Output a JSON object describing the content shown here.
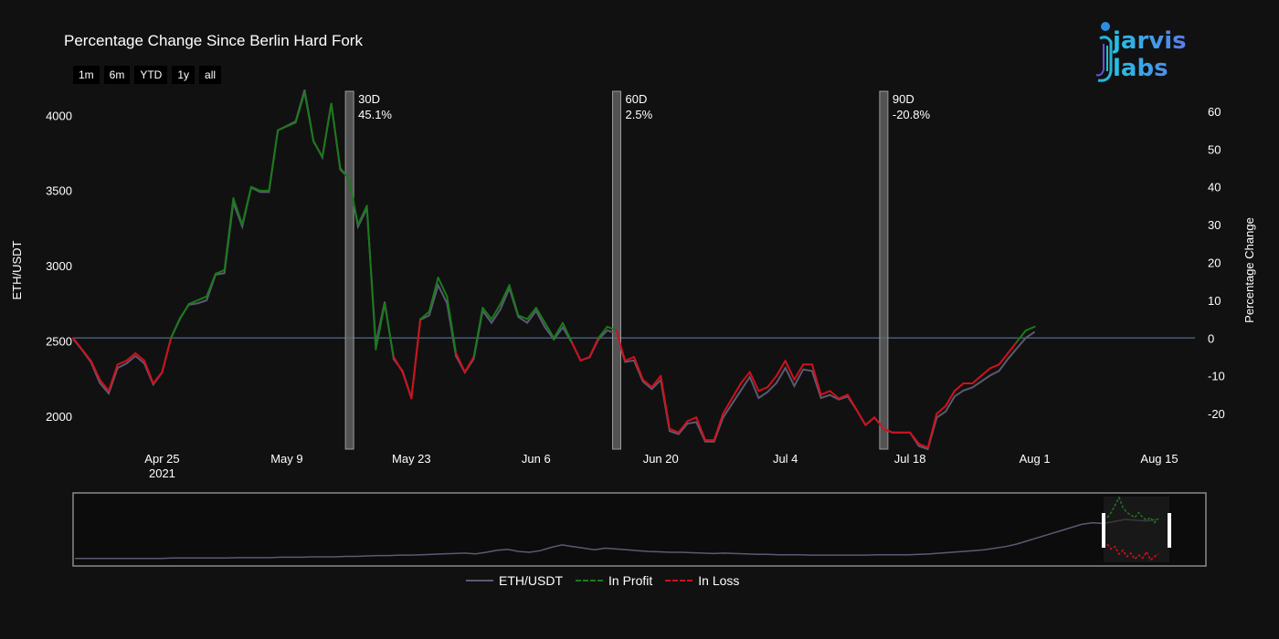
{
  "title": "Percentage Change Since Berlin Hard Fork",
  "range_buttons": [
    "1m",
    "6m",
    "YTD",
    "1y",
    "all"
  ],
  "logo": {
    "text": "jarvis labs"
  },
  "colors": {
    "background": "#111111",
    "eth": "#5b5a73",
    "profit": "#1a7a1a",
    "loss": "#d0111b",
    "marker": "#6a6a6a",
    "zero": "#4a5a75"
  },
  "chart_data": {
    "type": "line",
    "title": "Percentage Change Since Berlin Hard Fork",
    "x_start_date": "2021-04-15",
    "x_ticks": [
      {
        "day": 10,
        "label": "Apr 25",
        "sub": "2021"
      },
      {
        "day": 24,
        "label": "May 9",
        "sub": ""
      },
      {
        "day": 38,
        "label": "May 23",
        "sub": ""
      },
      {
        "day": 52,
        "label": "Jun 6",
        "sub": ""
      },
      {
        "day": 66,
        "label": "Jun 20",
        "sub": ""
      },
      {
        "day": 80,
        "label": "Jul 4",
        "sub": ""
      },
      {
        "day": 94,
        "label": "Jul 18",
        "sub": ""
      },
      {
        "day": 108,
        "label": "Aug 1",
        "sub": ""
      },
      {
        "day": 122,
        "label": "Aug 15",
        "sub": ""
      }
    ],
    "xlim": [
      0,
      126
    ],
    "y_left": {
      "label": "ETH/USDT",
      "lim": [
        1780,
        4160
      ],
      "ticks": [
        2000,
        2500,
        3000,
        3500,
        4000
      ]
    },
    "y_right": {
      "label": "Percentage Change",
      "lim": [
        -29.4,
        65.3
      ],
      "ticks": [
        60,
        50,
        40,
        30,
        20,
        10,
        0,
        -10,
        -20
      ]
    },
    "series": [
      {
        "name": "ETH/USDT",
        "axis": "left",
        "values": [
          2514,
          2440,
          2360,
          2220,
          2150,
          2320,
          2350,
          2400,
          2350,
          2210,
          2290,
          2520,
          2650,
          2740,
          2750,
          2770,
          2940,
          2950,
          3420,
          3260,
          3520,
          3490,
          3490,
          3900,
          3930,
          3960,
          4170,
          3830,
          3720,
          4080,
          3640,
          3580,
          3260,
          3380,
          2480,
          2760,
          2380,
          2300,
          2120,
          2640,
          2670,
          2870,
          2750,
          2400,
          2290,
          2380,
          2700,
          2620,
          2710,
          2850,
          2660,
          2620,
          2700,
          2590,
          2510,
          2590,
          2490,
          2370,
          2390,
          2510,
          2570,
          2550,
          2360,
          2370,
          2230,
          2180,
          2240,
          1900,
          1880,
          1950,
          1960,
          1830,
          1830,
          1990,
          2080,
          2170,
          2260,
          2120,
          2160,
          2220,
          2320,
          2200,
          2310,
          2300,
          2120,
          2140,
          2110,
          2130,
          2040,
          1940,
          1990,
          1920,
          1890,
          1890,
          1890,
          1800,
          1780,
          1990,
          2030,
          2130,
          2170,
          2190,
          2230,
          2270,
          2300,
          2380,
          2450,
          2520,
          2560
        ]
      },
      {
        "name": "In Profit",
        "axis": "right",
        "style": "dash",
        "values": [
          0,
          -3,
          -6,
          -11,
          -14,
          -7,
          -6,
          -4,
          -6,
          -12,
          -9,
          0,
          5,
          9,
          10,
          11,
          17,
          18,
          37,
          30,
          40,
          39,
          39,
          55,
          56,
          57,
          65,
          52,
          48,
          62,
          45,
          42,
          30,
          35,
          -3,
          9,
          -5,
          -9,
          -16,
          5,
          7,
          16,
          11,
          -4,
          -9,
          -5,
          8,
          5,
          9,
          14,
          6,
          5,
          8,
          4,
          0,
          4,
          -1,
          -6,
          -5,
          0,
          3,
          2,
          -6,
          -5,
          -11,
          -13,
          -10,
          -24,
          -25,
          -22,
          -21,
          -27,
          -27,
          -20,
          -16,
          -12,
          -9,
          -14,
          -13,
          -10,
          -6,
          -11,
          -7,
          -7,
          -15,
          -14,
          -16,
          -15,
          -19,
          -23,
          -21,
          -24,
          -25,
          -25,
          -25,
          -28,
          -29,
          -20,
          -18,
          -14,
          -12,
          -12,
          -10,
          -8,
          -7,
          -4,
          -1,
          2,
          3
        ]
      }
    ],
    "markers": [
      {
        "day": 31,
        "label": "30D",
        "value": "45.1%"
      },
      {
        "day": 61,
        "label": "60D",
        "value": "2.5%"
      },
      {
        "day": 91,
        "label": "90D",
        "value": "-20.8%"
      }
    ],
    "legend": [
      {
        "name": "ETH/USDT",
        "style": "solid"
      },
      {
        "name": "In Profit",
        "style": "dash"
      },
      {
        "name": "In Loss",
        "style": "dash"
      }
    ],
    "navigator": {
      "history": [
        5,
        5,
        5,
        5,
        5,
        5,
        5,
        5,
        5,
        6,
        6,
        6,
        6,
        6,
        6,
        7,
        7,
        7,
        7,
        8,
        8,
        8,
        9,
        9,
        9,
        10,
        10,
        11,
        12,
        12,
        13,
        13,
        14,
        15,
        16,
        17,
        18,
        16,
        20,
        25,
        27,
        22,
        20,
        24,
        32,
        38,
        34,
        30,
        26,
        30,
        28,
        26,
        24,
        22,
        21,
        20,
        20,
        19,
        18,
        17,
        18,
        17,
        16,
        15,
        15,
        14,
        14,
        14,
        13,
        13,
        13,
        13,
        13,
        13,
        14,
        14,
        14,
        14,
        15,
        16,
        18,
        20,
        22,
        24,
        26,
        30,
        34,
        40,
        48,
        56,
        64,
        72,
        80,
        88,
        92,
        90,
        95,
        100,
        98,
        96,
        100
      ],
      "recent_profit": [
        60,
        70,
        85,
        100,
        80,
        70,
        65,
        60,
        70,
        60,
        55,
        60,
        50,
        58
      ],
      "recent_loss": [
        40,
        30,
        35,
        20,
        28,
        15,
        22,
        10,
        18,
        12,
        25,
        8,
        15,
        20
      ]
    }
  }
}
